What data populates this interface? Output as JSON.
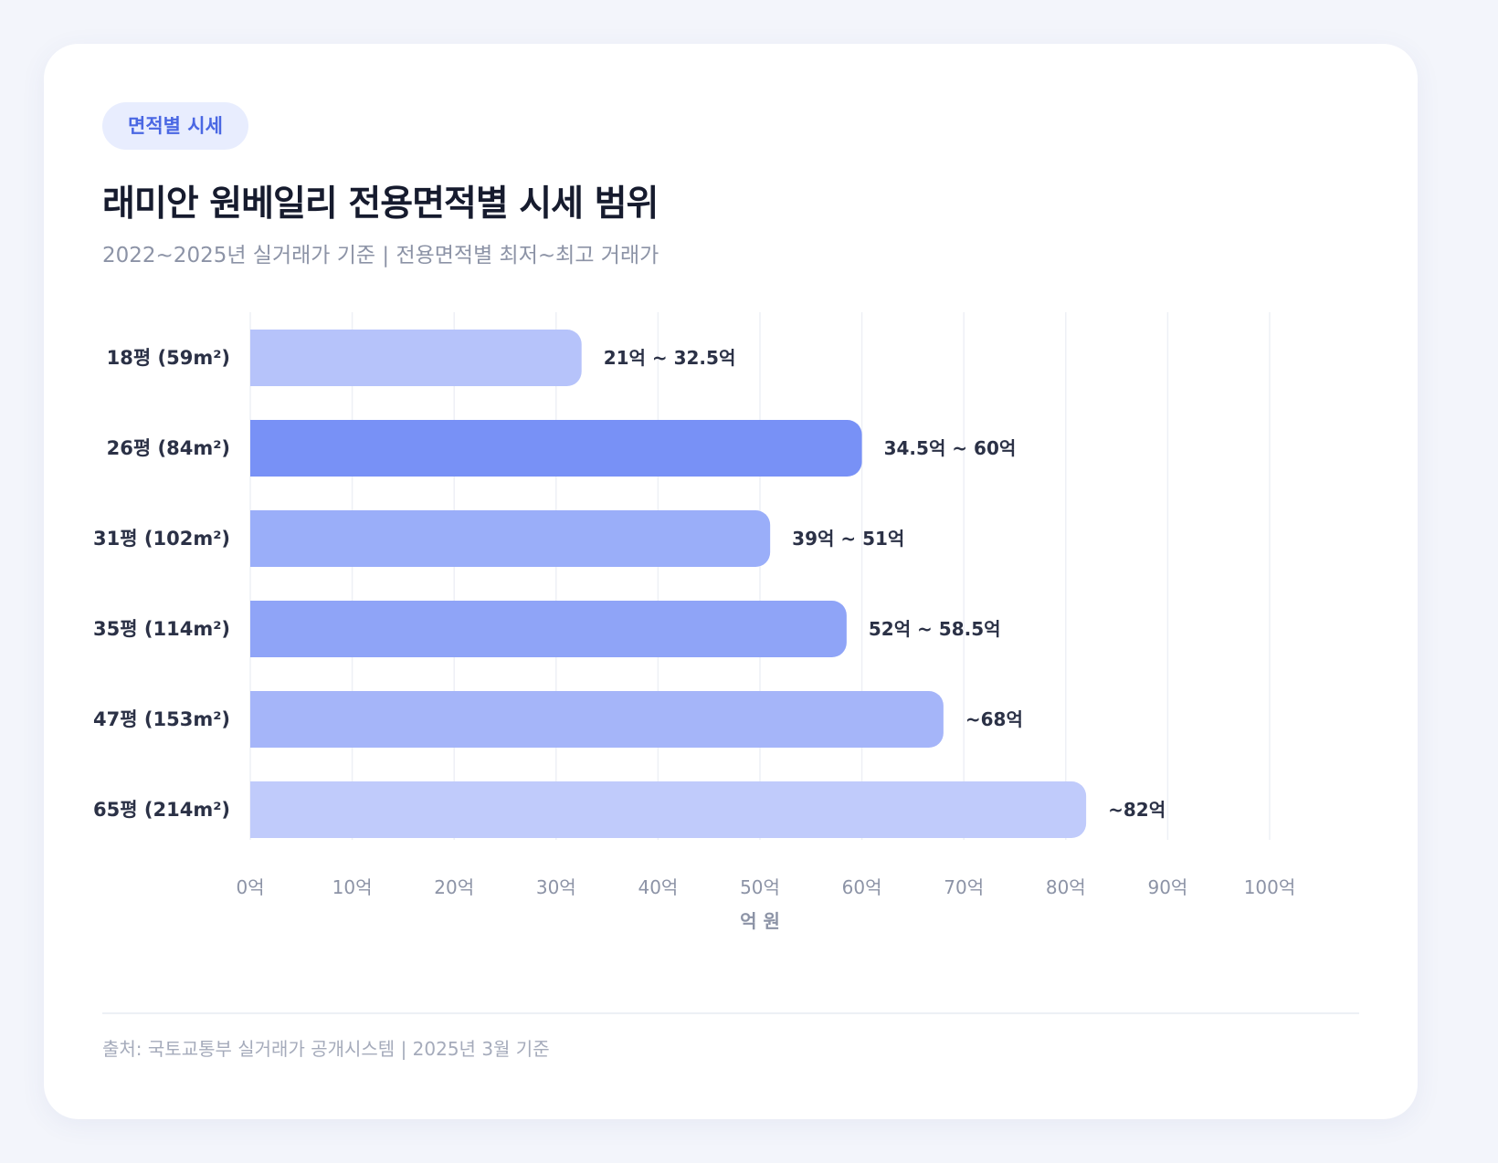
{
  "badge": "면적별 시세",
  "title": "래미안 원베일리 전용면적별 시세 범위",
  "subtitle": "2022~2025년 실거래가 기준 | 전용면적별 최저~최고 거래가",
  "footer": "출처: 국토교통부 실거래가 공개시스템 | 2025년 3월 기준",
  "chart_data": {
    "type": "bar",
    "orientation": "horizontal",
    "categories": [
      "18평 (59m²)",
      "26평 (84m²)",
      "31평 (102m²)",
      "35평 (114m²)",
      "47평 (153m²)",
      "65평 (214m²)"
    ],
    "values": [
      32.5,
      60,
      51,
      58.5,
      68,
      82
    ],
    "data_labels": [
      "21억 ~ 32.5억",
      "34.5억 ~ 60억",
      "39억 ~ 51억",
      "52억 ~ 58.5억",
      "~68억",
      "~82억"
    ],
    "bar_colors": [
      "#b6c3fa",
      "#7891f6",
      "#9aaef9",
      "#8fa4f7",
      "#a5b5f9",
      "#c0cbfb"
    ],
    "xlabel": "억 원",
    "ylabel": "",
    "xlim": [
      0,
      100
    ],
    "xticks": [
      "0억",
      "10억",
      "20억",
      "30억",
      "40억",
      "50억",
      "60억",
      "70억",
      "80억",
      "90억",
      "100억"
    ],
    "grid": true,
    "legend": "none"
  }
}
